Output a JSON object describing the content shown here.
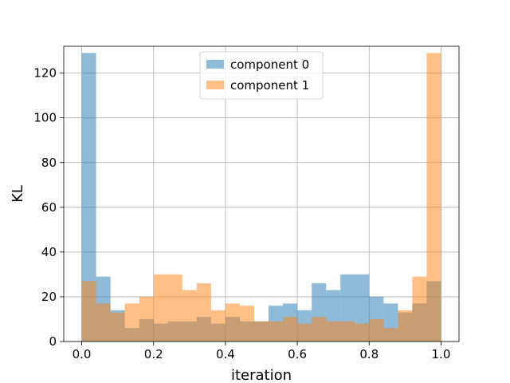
{
  "chart_data": {
    "type": "bar",
    "title": "",
    "xlabel": "iteration",
    "ylabel": "KL",
    "xlim": [
      -0.05,
      1.05
    ],
    "ylim": [
      0,
      132
    ],
    "xticks": [
      0.0,
      0.2,
      0.4,
      0.6,
      0.8,
      1.0
    ],
    "xtick_labels": [
      "0.0",
      "0.2",
      "0.4",
      "0.6",
      "0.8",
      "1.0"
    ],
    "yticks": [
      0,
      20,
      40,
      60,
      80,
      100,
      120
    ],
    "ytick_labels": [
      "0",
      "20",
      "40",
      "60",
      "80",
      "100",
      "120"
    ],
    "grid": true,
    "legend_position": "top-center",
    "bin_width": 0.04,
    "bin_starts": [
      0.0,
      0.04,
      0.08,
      0.12,
      0.16,
      0.2,
      0.24,
      0.28,
      0.32,
      0.36,
      0.4,
      0.44,
      0.48,
      0.52,
      0.56,
      0.6,
      0.64,
      0.68,
      0.72,
      0.76,
      0.8,
      0.84,
      0.88,
      0.92,
      0.96
    ],
    "series": [
      {
        "name": "component 0",
        "color": "#1f77b4",
        "alpha": 0.5,
        "values": [
          129,
          29,
          14,
          6,
          10,
          8,
          9,
          9,
          11,
          8,
          11,
          9,
          9,
          16,
          17,
          14,
          26,
          23,
          30,
          30,
          20,
          17,
          13,
          17,
          27
        ]
      },
      {
        "name": "component 1",
        "color": "#ff7f0e",
        "alpha": 0.5,
        "values": [
          27,
          17,
          13,
          17,
          20,
          30,
          30,
          23,
          26,
          14,
          17,
          16,
          9,
          9,
          11,
          8,
          11,
          9,
          9,
          8,
          10,
          6,
          14,
          29,
          129
        ]
      }
    ]
  }
}
